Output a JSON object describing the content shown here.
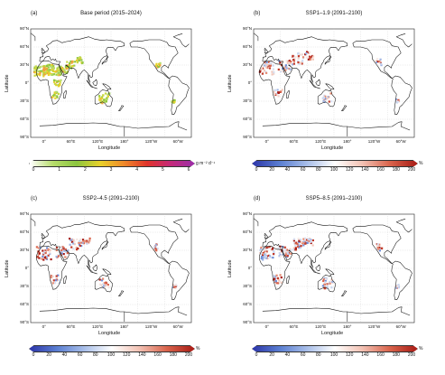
{
  "panels": [
    {
      "label": "(a)",
      "title": "Base period (2015–2024)",
      "type": "base"
    },
    {
      "label": "(b)",
      "title": "SSP1–1.9 (2091–2100)",
      "type": "pct1"
    },
    {
      "label": "(c)",
      "title": "SSP2–4.5 (2091–2100)",
      "type": "pct2"
    },
    {
      "label": "(d)",
      "title": "SSP5–8.5 (2091–2100)",
      "type": "pct3"
    }
  ],
  "axes": {
    "ylabel": "Latitude",
    "xlabel": "Longitude",
    "lat_ticks": [
      "90°N",
      "60°N",
      "30°N",
      "0°",
      "30°S",
      "60°S",
      "90°S"
    ],
    "lon_ticks": [
      "0°",
      "60°E",
      "120°E",
      "180°",
      "120°W",
      "60°W"
    ]
  },
  "colorbars": {
    "base": {
      "ticks": [
        "0",
        "1",
        "2",
        "3",
        "4",
        "5",
        "6"
      ],
      "unit": "g m⁻² d⁻¹",
      "colors": [
        "#ffffff",
        "#b6dc6a",
        "#8cc63f",
        "#e8d12a",
        "#f08a2a",
        "#e0342b",
        "#c42a7a",
        "#9b2fa8"
      ]
    },
    "pct": {
      "ticks": [
        "0",
        "20",
        "40",
        "60",
        "80",
        "100",
        "120",
        "140",
        "160",
        "180",
        "200"
      ],
      "unit": "%",
      "colors": [
        "#2d36a8",
        "#5b7fd2",
        "#a9bfe9",
        "#ffffff",
        "#f2c1b3",
        "#d9644c",
        "#a81c16"
      ]
    }
  }
}
